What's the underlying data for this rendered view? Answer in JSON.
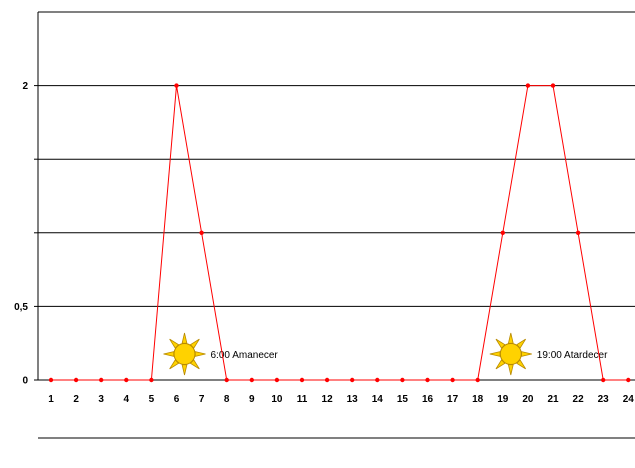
{
  "chart_data": {
    "type": "line",
    "x": [
      1,
      2,
      3,
      4,
      5,
      6,
      7,
      8,
      9,
      10,
      11,
      12,
      13,
      14,
      15,
      16,
      17,
      18,
      19,
      20,
      21,
      22,
      23,
      24
    ],
    "series": [
      {
        "values": [
          0,
          0,
          0,
          0,
          0,
          2,
          1,
          0,
          0,
          0,
          0,
          0,
          0,
          0,
          0,
          0,
          0,
          0,
          1,
          2,
          2,
          1,
          0,
          0
        ],
        "color": "#ff0000"
      }
    ],
    "xticks": [
      "1",
      "2",
      "3",
      "4",
      "5",
      "6",
      "7",
      "8",
      "9",
      "10",
      "11",
      "12",
      "13",
      "14",
      "15",
      "16",
      "17",
      "18",
      "19",
      "20",
      "21",
      "22",
      "23",
      "24"
    ],
    "yticks": [
      {
        "value": 0,
        "label": "0"
      },
      {
        "value": 0.5,
        "label": "0,5"
      },
      {
        "value": 1,
        "label": ""
      },
      {
        "value": 1.5,
        "label": ""
      },
      {
        "value": 2,
        "label": "2"
      }
    ],
    "ylim": [
      0,
      2.5
    ],
    "grid": true,
    "annotations": [
      {
        "x": 6,
        "text": "6:00  Amanecer",
        "icon": "sun-icon"
      },
      {
        "x": 19,
        "text": "19:00  Atardecer",
        "icon": "sun-icon"
      }
    ],
    "colors": {
      "line": "#ff0000",
      "sun_fill": "#ffd200",
      "sun_stroke": "#b88a00",
      "grid": "#000000"
    }
  }
}
